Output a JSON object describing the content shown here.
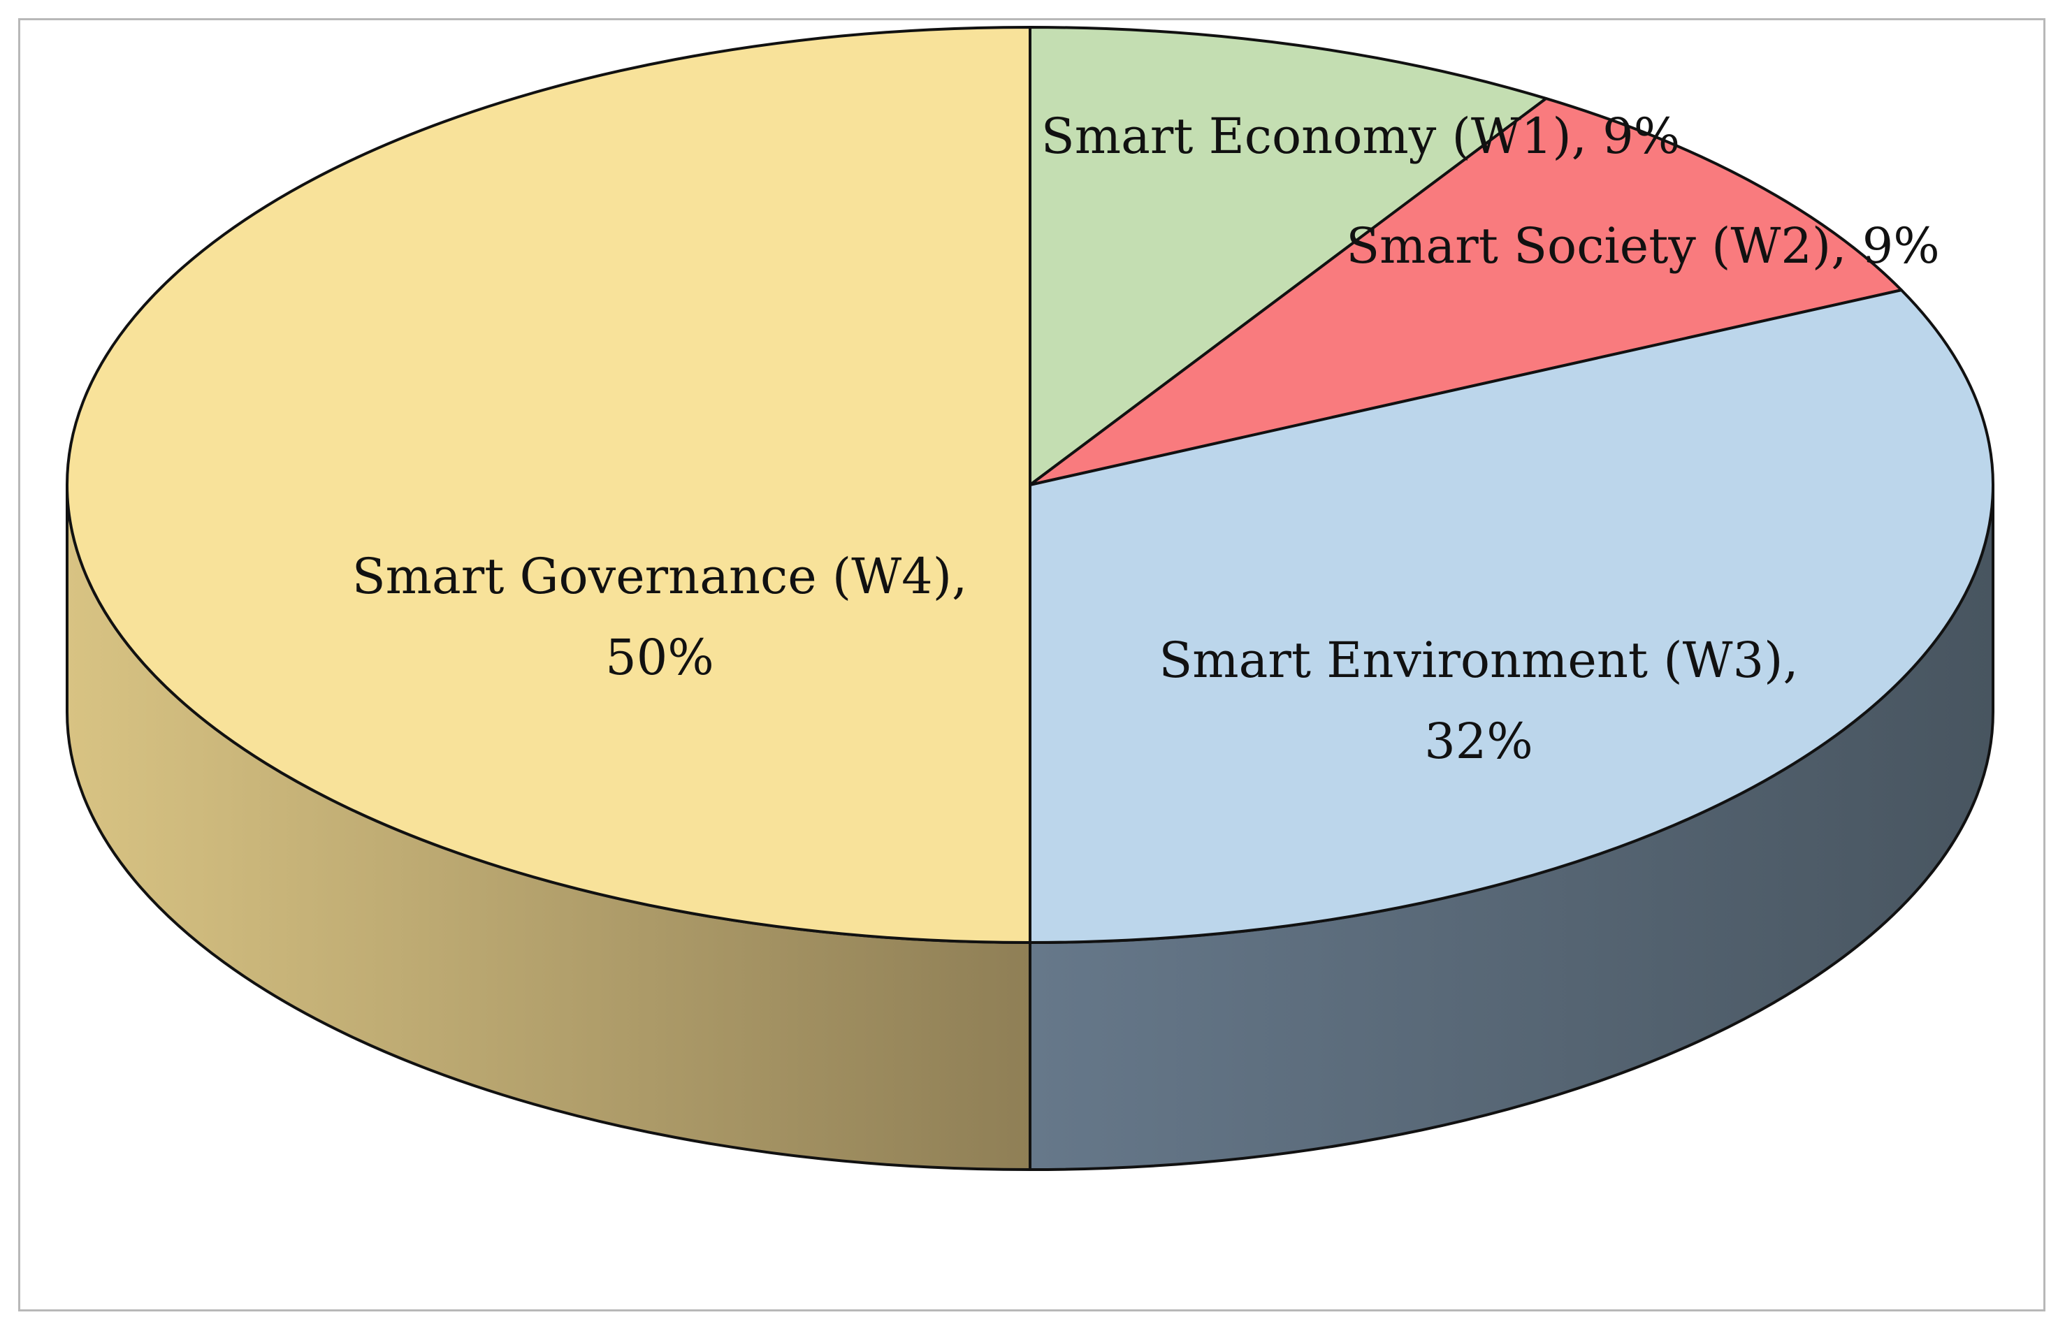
{
  "chart_data": {
    "type": "pie",
    "style": "3d",
    "start": "12 o'clock",
    "direction": "clockwise",
    "slices": [
      {
        "key": "w1",
        "label": "Smart Economy (W1), 9%",
        "lines": [
          "Smart Economy (W1), 9%"
        ],
        "value": 9,
        "color": "#c4deb2",
        "side_color": "#7f9470"
      },
      {
        "key": "w2",
        "label": "Smart Society (W2), 9%",
        "lines": [
          "Smart Society (W2), 9%"
        ],
        "value": 9,
        "color": "#f97b7e",
        "side_color": "#a84e50"
      },
      {
        "key": "w3",
        "label": "Smart Environment (W3), 32%",
        "lines": [
          "Smart Environment (W3),",
          "32%"
        ],
        "value": 32,
        "color": "#bcd6eb",
        "side_color": "#485560",
        "side_light": "#66788a"
      },
      {
        "key": "w4",
        "label": "Smart Governance (W4), 50%",
        "lines": [
          "Smart Governance (W4),",
          "50%"
        ],
        "value": 50,
        "color": "#f8e29a",
        "side_color": "#d8c383",
        "side_dark": "#8f7f56"
      }
    ]
  }
}
